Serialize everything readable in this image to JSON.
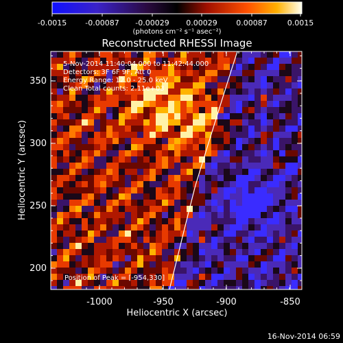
{
  "colorbar": {
    "ticks": [
      "-0.0015",
      "-0.00087",
      "-0.00029",
      "0.00029",
      "0.00087",
      "0.0015"
    ],
    "units": "(photons cm⁻² s⁻¹ asec⁻²)"
  },
  "plot": {
    "title": "Reconstructed RHESSI Image",
    "annotations": [
      "5-Nov-2014 11:40:04.000 to 11:42:44.000",
      "Detectors: 3F 6F 9F, Att 0",
      "Energy Range: 12.0 - 25.0 keV",
      "Clean    Total counts: 2.11e+03"
    ],
    "peak_text": "Position of Peak = [-954,330]",
    "xlabel": "Heliocentric X (arcsec)",
    "ylabel": "Heliocentric Y (arcsec)",
    "xticks": [
      "-1000",
      "-950",
      "-900",
      "-850"
    ],
    "yticks": [
      "200",
      "250",
      "300",
      "350"
    ]
  },
  "footer": {
    "timestamp": "16-Nov-2014 06:59"
  },
  "colors": {
    "limb_line": "#ffffff",
    "background": "#000000"
  }
}
